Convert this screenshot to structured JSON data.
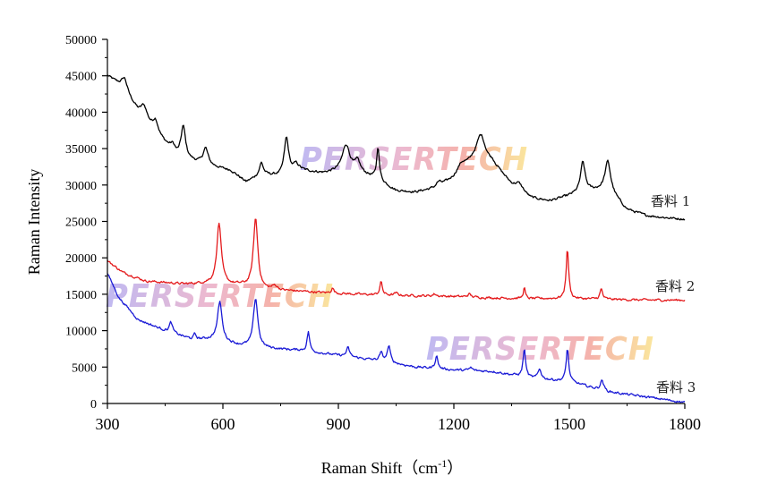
{
  "chart_data": {
    "type": "line",
    "title": "",
    "xlabel": "Raman Shift（cm",
    "xlabel_sup": "-1",
    "xlabel_suffix": "）",
    "ylabel": "Raman Intensity",
    "xlim": [
      300,
      1800
    ],
    "ylim": [
      0,
      50000
    ],
    "x_ticks": [
      "300",
      "600",
      "900",
      "1200",
      "1500",
      "1800"
    ],
    "y_ticks": [
      "0",
      "5000",
      "10000",
      "15000",
      "20000",
      "25000",
      "30000",
      "35000",
      "40000",
      "45000",
      "50000"
    ],
    "grid": false,
    "watermarks": [
      "PERSERTECH",
      "PERSERTECH",
      "PERSERTECH"
    ],
    "series": [
      {
        "name": "香料 1",
        "color": "#000000",
        "baseline": [
          [
            300,
            45000
          ],
          [
            340,
            43500
          ],
          [
            380,
            40000
          ],
          [
            420,
            37500
          ],
          [
            480,
            34000
          ],
          [
            550,
            32800
          ],
          [
            620,
            32000
          ],
          [
            660,
            30400
          ],
          [
            700,
            31400
          ],
          [
            750,
            31200
          ],
          [
            800,
            32000
          ],
          [
            860,
            31600
          ],
          [
            900,
            31800
          ],
          [
            950,
            31800
          ],
          [
            1000,
            30800
          ],
          [
            1050,
            29200
          ],
          [
            1100,
            29000
          ],
          [
            1150,
            29500
          ],
          [
            1200,
            30800
          ],
          [
            1250,
            33000
          ],
          [
            1300,
            33000
          ],
          [
            1350,
            30000
          ],
          [
            1400,
            28200
          ],
          [
            1450,
            27800
          ],
          [
            1500,
            28500
          ],
          [
            1540,
            29200
          ],
          [
            1600,
            29300
          ],
          [
            1650,
            26600
          ],
          [
            1700,
            25800
          ],
          [
            1750,
            25500
          ],
          [
            1800,
            25300
          ]
        ],
        "peaks": [
          [
            345,
            1500,
            8
          ],
          [
            395,
            1800,
            10
          ],
          [
            425,
            1700,
            8
          ],
          [
            470,
            900,
            8
          ],
          [
            497,
            4300,
            7
          ],
          [
            555,
            2300,
            8
          ],
          [
            700,
            1600,
            6
          ],
          [
            765,
            5000,
            7
          ],
          [
            790,
            900,
            8
          ],
          [
            920,
            3700,
            12
          ],
          [
            950,
            1300,
            8
          ],
          [
            1003,
            4500,
            4
          ],
          [
            1160,
            600,
            8
          ],
          [
            1220,
            1200,
            15
          ],
          [
            1270,
            3800,
            14
          ],
          [
            1370,
            900,
            12
          ],
          [
            1535,
            4000,
            7
          ],
          [
            1600,
            3900,
            9
          ]
        ]
      },
      {
        "name": "香料 2",
        "color": "#e41a1c",
        "baseline": [
          [
            300,
            19600
          ],
          [
            340,
            18000
          ],
          [
            400,
            16800
          ],
          [
            500,
            16400
          ],
          [
            560,
            16500
          ],
          [
            650,
            16200
          ],
          [
            700,
            15600
          ],
          [
            800,
            15400
          ],
          [
            900,
            15100
          ],
          [
            1000,
            14900
          ],
          [
            1100,
            14800
          ],
          [
            1200,
            14700
          ],
          [
            1300,
            14500
          ],
          [
            1400,
            14400
          ],
          [
            1500,
            14400
          ],
          [
            1600,
            14300
          ],
          [
            1700,
            14200
          ],
          [
            1800,
            14200
          ]
        ],
        "peaks": [
          [
            590,
            8300,
            7
          ],
          [
            685,
            9600,
            7
          ],
          [
            735,
            600,
            8
          ],
          [
            885,
            700,
            4
          ],
          [
            1011,
            1800,
            4
          ],
          [
            1050,
            300,
            5
          ],
          [
            1150,
            300,
            5
          ],
          [
            1240,
            400,
            5
          ],
          [
            1383,
            1500,
            3
          ],
          [
            1495,
            6800,
            4
          ],
          [
            1583,
            1400,
            4
          ]
        ]
      },
      {
        "name": "香料 3",
        "color": "#1a1ad6",
        "baseline": [
          [
            300,
            17900
          ],
          [
            330,
            14500
          ],
          [
            380,
            11500
          ],
          [
            450,
            10000
          ],
          [
            520,
            8800
          ],
          [
            580,
            8800
          ],
          [
            640,
            8000
          ],
          [
            700,
            7600
          ],
          [
            800,
            7300
          ],
          [
            900,
            6600
          ],
          [
            1000,
            5900
          ],
          [
            1100,
            5000
          ],
          [
            1200,
            4600
          ],
          [
            1300,
            4400
          ],
          [
            1400,
            3500
          ],
          [
            1500,
            3000
          ],
          [
            1600,
            1600
          ],
          [
            1700,
            900
          ],
          [
            1800,
            150
          ]
        ],
        "peaks": [
          [
            465,
            1400,
            5
          ],
          [
            527,
            700,
            4
          ],
          [
            592,
            5300,
            7
          ],
          [
            685,
            6700,
            7
          ],
          [
            822,
            2700,
            4
          ],
          [
            925,
            1200,
            5
          ],
          [
            1011,
            1100,
            5
          ],
          [
            1031,
            2200,
            5
          ],
          [
            1155,
            1800,
            4
          ],
          [
            1244,
            400,
            5
          ],
          [
            1383,
            3800,
            4
          ],
          [
            1423,
            1300,
            5
          ],
          [
            1495,
            4500,
            4
          ],
          [
            1585,
            1400,
            5
          ]
        ]
      }
    ]
  }
}
